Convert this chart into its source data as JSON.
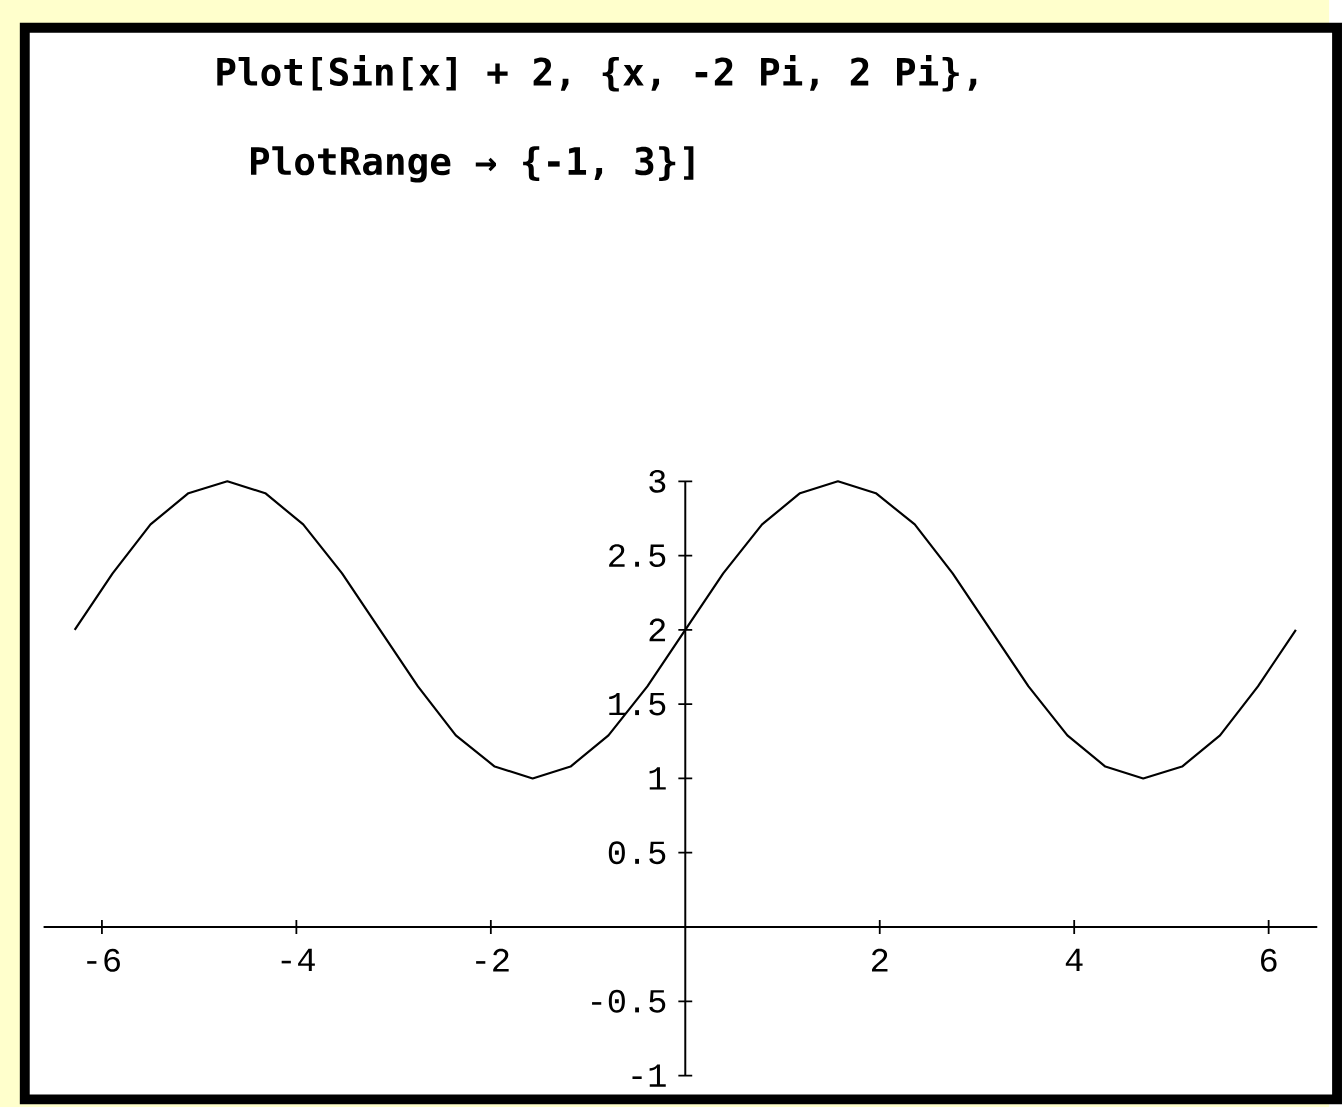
{
  "chart_data": {
    "type": "line",
    "title": "Plot[Sin[x] + 2, {x, -2 Pi, 2 Pi},",
    "subtitle": "PlotRange → {-1, 3}]",
    "x": [
      -6.28,
      -5.89,
      -5.5,
      -5.11,
      -4.71,
      -4.32,
      -3.93,
      -3.53,
      -3.14,
      -2.75,
      -2.36,
      -1.96,
      -1.57,
      -1.18,
      -0.79,
      -0.39,
      0,
      0.39,
      0.79,
      1.18,
      1.57,
      1.96,
      2.36,
      2.75,
      3.14,
      3.53,
      3.93,
      4.32,
      4.71,
      5.11,
      5.5,
      5.89,
      6.28
    ],
    "series": [
      {
        "color": "#000000",
        "values": [
          2,
          2.38,
          2.71,
          2.92,
          3,
          2.92,
          2.71,
          2.38,
          2,
          1.62,
          1.29,
          1.08,
          1,
          1.08,
          1.29,
          1.62,
          2,
          2.38,
          2.71,
          2.92,
          3,
          2.92,
          2.71,
          2.38,
          2,
          1.62,
          1.29,
          1.08,
          1,
          1.08,
          1.29,
          1.62,
          2
        ]
      }
    ],
    "xlim": [
      -6.6,
      6.5
    ],
    "ylim": [
      -1,
      3
    ],
    "xticks": [
      -6,
      -4,
      -2,
      2,
      4,
      6
    ],
    "yticks": [
      -1,
      -0.5,
      0.5,
      1,
      1.5,
      2,
      2.5,
      3
    ],
    "marker": "none",
    "line_style": "solid"
  }
}
